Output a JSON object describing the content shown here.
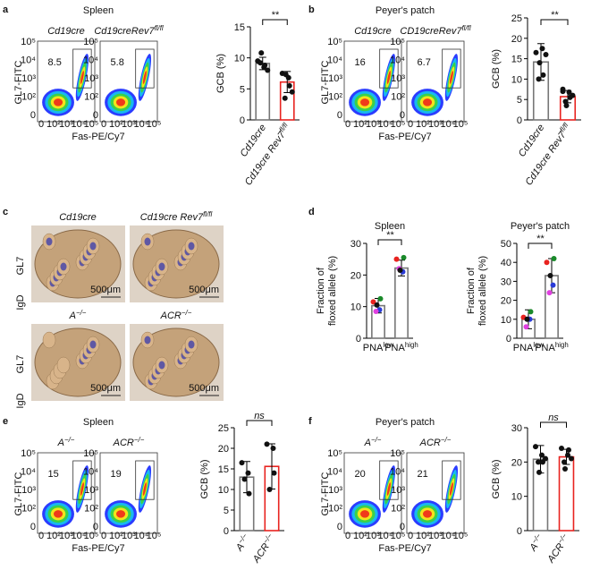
{
  "panels": [
    {
      "letter": "a",
      "title": "Spleen",
      "ylabel": "GL7-FITC",
      "xlabel": "Fas-PE/Cy7",
      "plots": [
        {
          "label": "Cd19cre",
          "gate": "8.5"
        },
        {
          "label": "Cd19creRev7",
          "sup": "fl/fl",
          "gate": "5.8"
        }
      ]
    },
    {
      "letter": "b",
      "title": "Peyer's patch",
      "ylabel": "GL7-FITC",
      "xlabel": "Fas-PE/Cy7",
      "plots": [
        {
          "label": "Cd19cre",
          "gate": "16"
        },
        {
          "label": "CD19creRev7",
          "sup": "fl/fl",
          "gate": "6.7"
        }
      ]
    },
    {
      "letter": "c"
    },
    {
      "letter": "d"
    },
    {
      "letter": "e",
      "title": "Spleen",
      "ylabel": "GL7-FITC",
      "xlabel": "Fas-PE/Cy7",
      "plots": [
        {
          "label": "A",
          "sup": "−/−",
          "gate": "15"
        },
        {
          "label": "ACR",
          "sup": "−/−",
          "gate": "19"
        }
      ]
    },
    {
      "letter": "f",
      "title": "Peyer's patch",
      "ylabel": "GL7-FITC",
      "xlabel": "Fas-PE/Cy7",
      "plots": [
        {
          "label": "A",
          "sup": "−/−",
          "gate": "20"
        },
        {
          "label": "ACR",
          "sup": "−/−",
          "gate": "21"
        }
      ]
    }
  ],
  "flow_yticks": [
    "10⁵",
    "10⁴",
    "10³",
    "10²",
    "0"
  ],
  "flow_xticks": [
    "0",
    "10²",
    "10³",
    "10⁴",
    "10⁵"
  ],
  "images": {
    "labels": [
      {
        "base": "Cd19cre"
      },
      {
        "base": "Cd19cre Rev7",
        "sup": "fl/fl"
      },
      {
        "base": "A",
        "sup": "−/−"
      },
      {
        "base": "ACR",
        "sup": "−/−"
      }
    ],
    "stains": [
      "GL7",
      "IgD"
    ],
    "scale": "500μm"
  },
  "chart_data": [
    {
      "type": "bar",
      "ylabel": [
        "GCB (%)"
      ],
      "categories": [
        "Cd19cre",
        "Cd19cre Rev7"
      ],
      "category_sups": [
        null,
        "fl/fl"
      ],
      "rotate_labels": true,
      "values": [
        9.1,
        6.1
      ],
      "errors": [
        1.0,
        1.7
      ],
      "colors": [
        "#777777",
        "#e8231f"
      ],
      "points": [
        [
          9.5,
          8.5,
          8.8,
          9.2,
          10.8,
          8.0
        ],
        [
          7.5,
          6.8,
          5.5,
          3.5,
          7.3,
          4.5
        ]
      ],
      "sig": "**",
      "ylim": [
        0,
        15
      ],
      "yticks": [
        0,
        5,
        10,
        15
      ]
    },
    {
      "type": "bar",
      "ylabel": [
        "GCB (%)"
      ],
      "categories": [
        "Cd19cre",
        "Cd19cre Rev7"
      ],
      "category_sups": [
        null,
        "fl/fl"
      ],
      "rotate_labels": true,
      "values": [
        14.2,
        5.7
      ],
      "errors": [
        4.5,
        1.5
      ],
      "colors": [
        "#777777",
        "#e8231f"
      ],
      "points": [
        [
          16.5,
          17.5,
          11,
          10,
          14,
          16
        ],
        [
          7.5,
          6.8,
          5.5,
          4.5,
          3.5,
          6,
          7
        ]
      ],
      "sig": "**",
      "ylim": [
        0,
        25
      ],
      "yticks": [
        0,
        5,
        10,
        15,
        20,
        25
      ]
    },
    {
      "type": "bar",
      "title": "Spleen",
      "ylabel": [
        "Fraction of",
        "floxed allele (%)"
      ],
      "categories": [
        "PNA",
        "PNA"
      ],
      "category_sups": [
        "low",
        "high"
      ],
      "rotate_labels": false,
      "values": [
        10.3,
        22.2
      ],
      "errors": [
        2.3,
        2.5
      ],
      "colors": [
        "#777777",
        "#777777"
      ],
      "point_colors": [
        "#e8231f",
        "#2a3bd8",
        "#1a8a2a",
        "#e040e0",
        "#111111"
      ],
      "points": [
        [
          11.5,
          9,
          12.5,
          8.5,
          10.5
        ],
        [
          25,
          21,
          25.5,
          22,
          21.5
        ]
      ],
      "sig": "**",
      "ylim": [
        0,
        30
      ],
      "yticks": [
        0,
        10,
        20,
        30
      ]
    },
    {
      "type": "bar",
      "title": "Peyer's patch",
      "ylabel": [
        "Fraction of",
        "floxed allele (%)"
      ],
      "categories": [
        "PNA",
        "PNA"
      ],
      "category_sups": [
        "low",
        "high"
      ],
      "rotate_labels": false,
      "values": [
        10,
        33
      ],
      "errors": [
        5,
        9
      ],
      "colors": [
        "#777777",
        "#777777"
      ],
      "point_colors": [
        "#e8231f",
        "#2a3bd8",
        "#1a8a2a",
        "#e040e0",
        "#111111"
      ],
      "points": [
        [
          11,
          10,
          14,
          6,
          10
        ],
        [
          40,
          28,
          42,
          24,
          33
        ]
      ],
      "sig": "**",
      "ylim": [
        0,
        50
      ],
      "yticks": [
        0,
        10,
        20,
        30,
        40,
        50
      ]
    },
    {
      "type": "bar",
      "ylabel": [
        "GCB (%)"
      ],
      "categories": [
        "A",
        "ACR"
      ],
      "category_sups": [
        "−/−",
        "−/−"
      ],
      "rotate_labels": true,
      "values": [
        13,
        15.6
      ],
      "errors": [
        3.8,
        5.5
      ],
      "colors": [
        "#777777",
        "#e8231f"
      ],
      "points": [
        [
          16.5,
          14,
          9,
          12.5
        ],
        [
          21,
          20,
          14,
          10
        ]
      ],
      "sig": "ns",
      "ylim": [
        0,
        25
      ],
      "yticks": [
        0,
        5,
        10,
        15,
        20,
        25
      ]
    },
    {
      "type": "bar",
      "ylabel": [
        "GCB (%)"
      ],
      "categories": [
        "A",
        "ACR"
      ],
      "category_sups": [
        "−/−",
        "−/−"
      ],
      "rotate_labels": true,
      "values": [
        20.8,
        21.5
      ],
      "errors": [
        4,
        2.2
      ],
      "colors": [
        "#777777",
        "#e8231f"
      ],
      "points": [
        [
          24.5,
          22,
          20,
          20,
          17,
          21
        ],
        [
          24,
          22,
          23.5,
          20,
          18,
          21
        ]
      ],
      "sig": "ns",
      "ylim": [
        0,
        30
      ],
      "yticks": [
        0,
        10,
        20,
        30
      ]
    }
  ]
}
